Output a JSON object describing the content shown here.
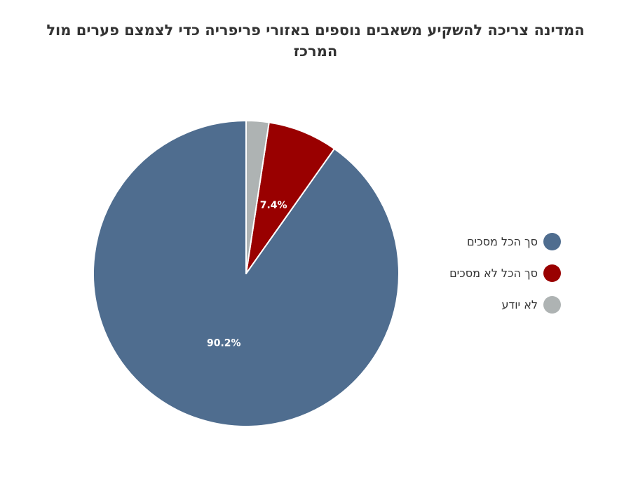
{
  "chart_data": {
    "type": "pie",
    "title": "המדינה צריכה להשקיע משאבים נוספים באזורי פריפריה כדי לצמצם פערים מול המרכז",
    "legend_position": "right",
    "slices": [
      {
        "label": "סך הכל מסכים",
        "value": 90.2,
        "data_label": "90.2%",
        "color": "#4f6d8f"
      },
      {
        "label": "סך הכל לא מסכים",
        "value": 7.4,
        "data_label": "7.4%",
        "color": "#990000"
      },
      {
        "label": "לא יודע",
        "value": 2.4,
        "data_label": "",
        "color": "#aeb3b3"
      }
    ]
  }
}
